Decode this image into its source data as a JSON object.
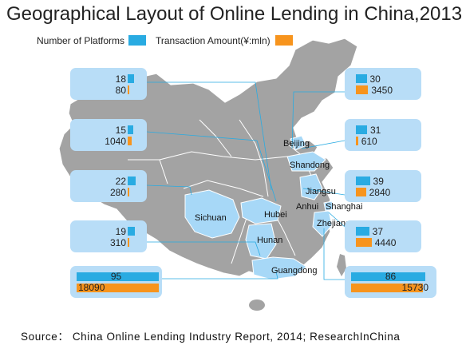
{
  "title": "Geographical Layout of Online Lending in China,2013",
  "source": "Source： China Online Lending Industry Report, 2014; ResearchInChina",
  "colors": {
    "platforms": "#29abe2",
    "amount": "#f7941d",
    "map_gray": "#a3a3a3",
    "map_highlight": "#a7d8f7",
    "box_fill": "#b8ddf7"
  },
  "legend": {
    "platforms_label": "Number of Platforms",
    "amount_label": "Transaction Amount(¥:mln)"
  },
  "provinces": {
    "beijing": "Beijing",
    "shandong": "Shandong",
    "jiangsu": "Jiangsu",
    "anhui": "Anhui",
    "shanghai": "Shanghai",
    "zhejiang": "Zhejiang",
    "sichuan": "Sichuan",
    "hubei": "Hubei",
    "hunan": "Hunan",
    "guangdong": "Guangdong"
  },
  "chart_data": {
    "type": "bar",
    "title": "Geographical Layout of Online Lending in China,2013",
    "series": [
      {
        "name": "Number of Platforms",
        "values": [
          18,
          15,
          22,
          19,
          95,
          30,
          31,
          39,
          37,
          86
        ]
      },
      {
        "name": "Transaction Amount(¥:mln)",
        "values": [
          80,
          1040,
          280,
          310,
          18090,
          3450,
          610,
          2840,
          4440,
          15730
        ]
      }
    ],
    "boxes": [
      {
        "platforms": "18",
        "amount": "80"
      },
      {
        "platforms": "15",
        "amount": "1040"
      },
      {
        "platforms": "22",
        "amount": "280"
      },
      {
        "platforms": "19",
        "amount": "310"
      },
      {
        "platforms": "95",
        "amount": "18090"
      },
      {
        "platforms": "30",
        "amount": "3450"
      },
      {
        "platforms": "31",
        "amount": "610"
      },
      {
        "platforms": "39",
        "amount": "2840"
      },
      {
        "platforms": "37",
        "amount": "4440"
      },
      {
        "platforms": "86",
        "amount": "15730"
      }
    ]
  }
}
